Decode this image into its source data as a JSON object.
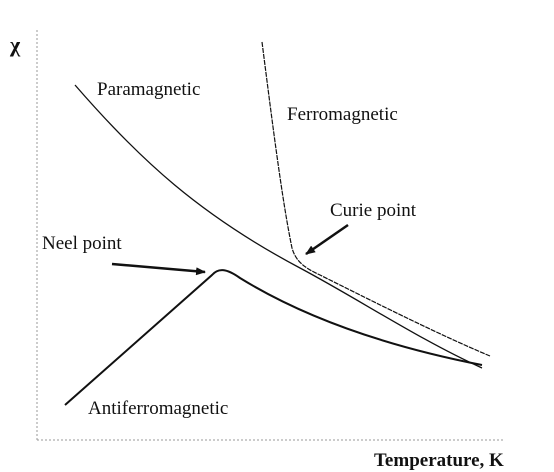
{
  "axes": {
    "y_label": "χ",
    "x_label": "Temperature, K"
  },
  "curves": [
    {
      "label": "Paramagnetic"
    },
    {
      "label": "Ferromagnetic"
    },
    {
      "label": "Antiferromagnetic"
    }
  ],
  "annotations": [
    {
      "label": "Curie point"
    },
    {
      "label": "Neel point"
    }
  ]
}
